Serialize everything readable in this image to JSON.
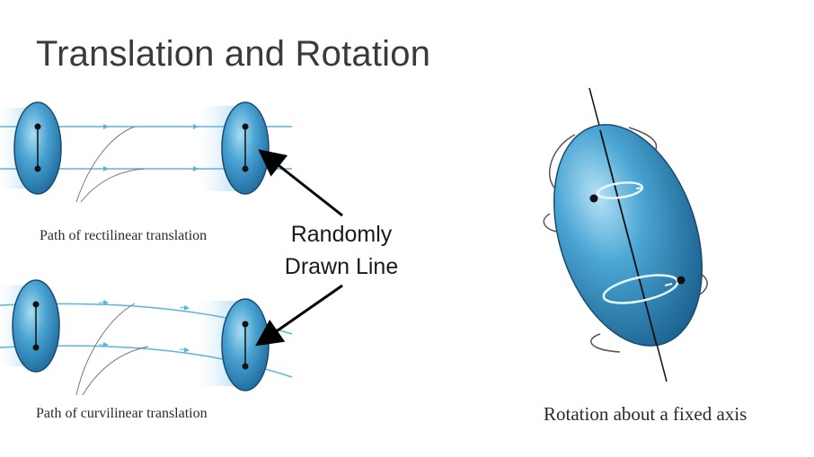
{
  "slide": {
    "title": "Translation and Rotation"
  },
  "captions": {
    "rectilinear": "Path of rectilinear translation",
    "curvilinear": "Path of curvilinear translation",
    "rotation": "Rotation about a fixed axis"
  },
  "callout": {
    "line1": "Randomly",
    "line2": "Drawn Line"
  },
  "colors": {
    "body_fill": "#2f8fc2",
    "body_light": "#8fd0ee",
    "path_line": "#5fb4da",
    "arrow": "#000000"
  }
}
